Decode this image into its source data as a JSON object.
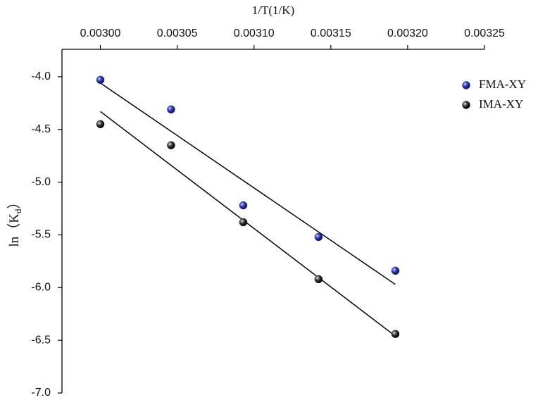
{
  "chart_data": {
    "type": "scatter",
    "xlabel": "1/T(1/K)",
    "ylabel_parts": [
      "ln（K",
      "d",
      "）"
    ],
    "xlim": [
      0.002975,
      0.00325
    ],
    "ylim": [
      -7.0,
      -3.74
    ],
    "xticks": [
      {
        "value": 0.003,
        "label": "0.00300"
      },
      {
        "value": 0.00305,
        "label": "0.00305"
      },
      {
        "value": 0.0031,
        "label": "0.00310"
      },
      {
        "value": 0.00315,
        "label": "0.00315"
      },
      {
        "value": 0.0032,
        "label": "0.00320"
      },
      {
        "value": 0.00325,
        "label": "0.00325"
      }
    ],
    "yticks": [
      {
        "value": -4,
        "label": "-4.0"
      },
      -4.5,
      {
        "value": -5,
        "label": "-5.0"
      },
      -5.5,
      {
        "value": -6,
        "label": "-6.0"
      },
      -6.5,
      {
        "value": -7,
        "label": "-7.0"
      }
    ],
    "legend": "upper right",
    "series": [
      {
        "name": "FMA-XY",
        "color": "#1f2a9e",
        "x": [
          0.003,
          0.003046,
          0.003093,
          0.003142,
          0.003192
        ],
        "values": [
          -4.03,
          -4.31,
          -5.22,
          -5.52,
          -5.84
        ],
        "fit_x": [
          0.003,
          0.003192
        ],
        "fit_y": [
          -4.06,
          -5.97
        ]
      },
      {
        "name": "IMA-XY",
        "color": "#1a1a1a",
        "x": [
          0.003,
          0.003046,
          0.003093,
          0.003142,
          0.003192
        ],
        "values": [
          -4.45,
          -4.65,
          -5.38,
          -5.92,
          -6.44
        ],
        "fit_x": [
          0.003,
          0.003192
        ],
        "fit_y": [
          -4.33,
          -6.46
        ]
      }
    ]
  }
}
